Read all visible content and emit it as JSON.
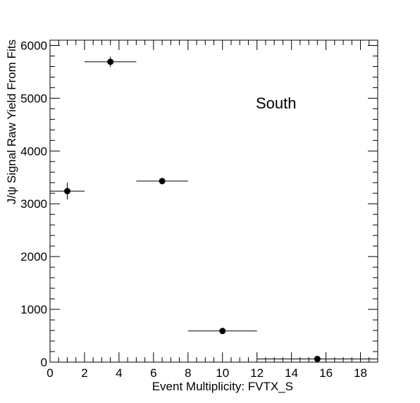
{
  "chart_data": {
    "type": "scatter",
    "title": "",
    "annotation": "South",
    "xlabel": "Event Multiplicity: FVTX_S",
    "ylabel": "J/ψ Signal Raw Yield From Fits",
    "xlim": [
      0,
      19
    ],
    "ylim": [
      0,
      6100
    ],
    "xticks": [
      0,
      2,
      4,
      6,
      8,
      10,
      12,
      14,
      16,
      18
    ],
    "yticks": [
      0,
      1000,
      2000,
      3000,
      4000,
      5000,
      6000
    ],
    "grid": false,
    "legend": "none",
    "points": [
      {
        "x": 1.0,
        "y": 3240,
        "xlo": 0.0,
        "xhi": 2.0,
        "yerr": 160
      },
      {
        "x": 3.5,
        "y": 5690,
        "xlo": 2.0,
        "xhi": 5.0,
        "yerr": 100
      },
      {
        "x": 6.5,
        "y": 3430,
        "xlo": 5.0,
        "xhi": 8.0,
        "yerr": 50
      },
      {
        "x": 10.0,
        "y": 590,
        "xlo": 8.0,
        "xhi": 12.0,
        "yerr": 20
      },
      {
        "x": 15.5,
        "y": 60,
        "xlo": 12.0,
        "xhi": 19.0,
        "yerr": 10
      }
    ],
    "marker_color": "#000000"
  }
}
